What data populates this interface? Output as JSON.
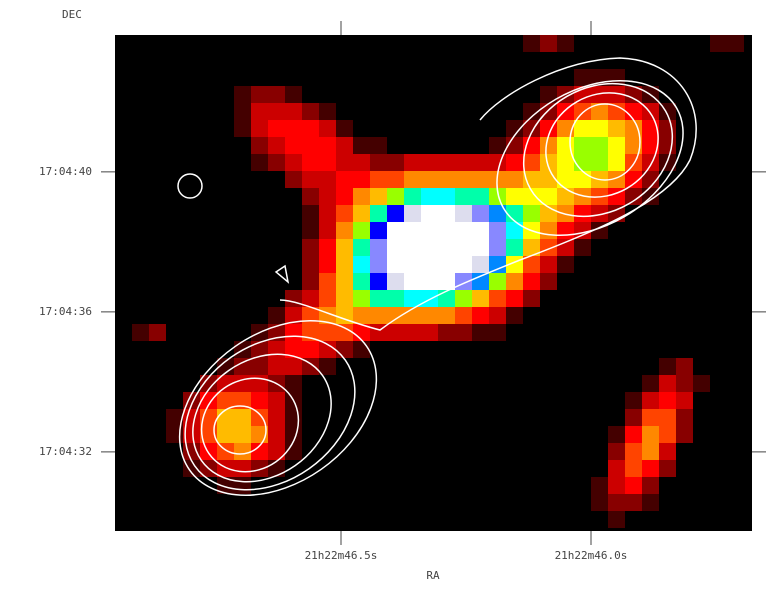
{
  "chart_data": {
    "type": "image",
    "x_label": "RA",
    "y_label": "DEC",
    "xlim": [
      46.952,
      45.678
    ],
    "ylim": [
      29.74,
      43.91
    ],
    "xticks": [
      {
        "value": 46.5,
        "label": "21h22m46.5s"
      },
      {
        "value": 46.0,
        "label": "21h22m46.0s"
      }
    ],
    "yticks": [
      {
        "value": 40,
        "label": "17:04:40"
      },
      {
        "value": 36,
        "label": "17:04:36"
      },
      {
        "value": 32,
        "label": "17:04:32"
      }
    ]
  }
}
